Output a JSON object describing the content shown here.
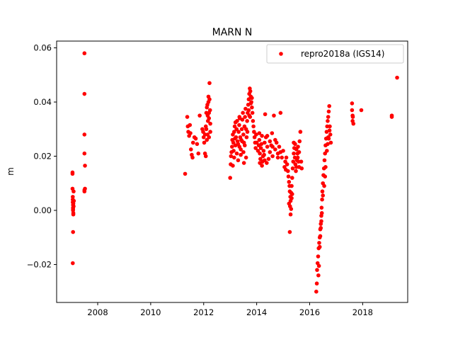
{
  "chart_data": {
    "type": "scatter",
    "title": "MARN N",
    "xlabel": "",
    "ylabel": "m",
    "xlim": [
      2006.45,
      2019.7
    ],
    "ylim": [
      -0.034,
      0.0625
    ],
    "xticks": [
      2008,
      2010,
      2012,
      2014,
      2016,
      2018
    ],
    "yticks": [
      -0.02,
      0.0,
      0.02,
      0.04,
      0.06
    ],
    "ytick_labels": [
      "−0.02",
      "0.00",
      "0.02",
      "0.04",
      "0.06"
    ],
    "grid": false,
    "legend_position": "top-right",
    "series": [
      {
        "name": "repro2018a (IGS14)",
        "color": "#ff0000",
        "marker": "circle",
        "points": [
          [
            2007.05,
            0.014
          ],
          [
            2007.05,
            0.0135
          ],
          [
            2007.05,
            0.008
          ],
          [
            2007.06,
            0.005
          ],
          [
            2007.06,
            0.004
          ],
          [
            2007.06,
            0.003
          ],
          [
            2007.07,
            0.002
          ],
          [
            2007.07,
            0.001
          ],
          [
            2007.07,
            0.0
          ],
          [
            2007.08,
            -0.001
          ],
          [
            2007.08,
            -0.0015
          ],
          [
            2007.09,
            0.0015
          ],
          [
            2007.09,
            0.007
          ],
          [
            2007.07,
            -0.008
          ],
          [
            2007.06,
            -0.0195
          ],
          [
            2007.1,
            0.0035
          ],
          [
            2007.08,
            0.0025
          ],
          [
            2007.07,
            0.0005
          ],
          [
            2007.5,
            0.058
          ],
          [
            2007.5,
            0.043
          ],
          [
            2007.5,
            0.028
          ],
          [
            2007.5,
            0.021
          ],
          [
            2007.52,
            0.0165
          ],
          [
            2007.5,
            0.0075
          ],
          [
            2007.5,
            0.007
          ],
          [
            2007.52,
            0.008
          ],
          [
            2011.3,
            0.0135
          ],
          [
            2011.38,
            0.0345
          ],
          [
            2011.4,
            0.031
          ],
          [
            2011.42,
            0.029
          ],
          [
            2011.45,
            0.0275
          ],
          [
            2011.48,
            0.0315
          ],
          [
            2011.5,
            0.0285
          ],
          [
            2011.52,
            0.0225
          ],
          [
            2011.55,
            0.0205
          ],
          [
            2011.58,
            0.0195
          ],
          [
            2011.6,
            0.025
          ],
          [
            2011.65,
            0.027
          ],
          [
            2011.7,
            0.0265
          ],
          [
            2011.75,
            0.0245
          ],
          [
            2011.8,
            0.021
          ],
          [
            2011.85,
            0.035
          ],
          [
            2011.95,
            0.03
          ],
          [
            2011.98,
            0.029
          ],
          [
            2012.0,
            0.027
          ],
          [
            2012.02,
            0.025
          ],
          [
            2012.05,
            0.028
          ],
          [
            2012.08,
            0.031
          ],
          [
            2012.05,
            0.021
          ],
          [
            2012.08,
            0.02
          ],
          [
            2012.1,
            0.036
          ],
          [
            2012.12,
            0.038
          ],
          [
            2012.14,
            0.039
          ],
          [
            2012.15,
            0.035
          ],
          [
            2012.16,
            0.033
          ],
          [
            2012.18,
            0.04
          ],
          [
            2012.18,
            0.042
          ],
          [
            2012.2,
            0.036
          ],
          [
            2012.2,
            0.034
          ],
          [
            2012.22,
            0.041
          ],
          [
            2012.22,
            0.047
          ],
          [
            2012.24,
            0.037
          ],
          [
            2012.25,
            0.032
          ],
          [
            2012.25,
            0.029
          ],
          [
            2012.12,
            0.026
          ],
          [
            2012.15,
            0.028
          ],
          [
            2012.1,
            0.03
          ],
          [
            2012.2,
            0.027
          ],
          [
            2013.0,
            0.012
          ],
          [
            2013.02,
            0.017
          ],
          [
            2013.03,
            0.02
          ],
          [
            2013.05,
            0.0215
          ],
          [
            2013.07,
            0.0235
          ],
          [
            2013.08,
            0.026
          ],
          [
            2013.1,
            0.028
          ],
          [
            2013.12,
            0.025
          ],
          [
            2013.13,
            0.022
          ],
          [
            2013.15,
            0.029
          ],
          [
            2013.17,
            0.031
          ],
          [
            2013.18,
            0.0265
          ],
          [
            2013.2,
            0.024
          ],
          [
            2013.22,
            0.027
          ],
          [
            2013.24,
            0.03
          ],
          [
            2013.26,
            0.033
          ],
          [
            2013.28,
            0.0255
          ],
          [
            2013.3,
            0.0245
          ],
          [
            2013.32,
            0.029
          ],
          [
            2013.34,
            0.0315
          ],
          [
            2013.36,
            0.034
          ],
          [
            2013.38,
            0.027
          ],
          [
            2013.4,
            0.0225
          ],
          [
            2013.42,
            0.026
          ],
          [
            2013.44,
            0.03
          ],
          [
            2013.46,
            0.0335
          ],
          [
            2013.48,
            0.036
          ],
          [
            2013.5,
            0.028
          ],
          [
            2013.52,
            0.025
          ],
          [
            2013.54,
            0.031
          ],
          [
            2013.56,
            0.0345
          ],
          [
            2013.58,
            0.0375
          ],
          [
            2013.6,
            0.03
          ],
          [
            2013.62,
            0.027
          ],
          [
            2013.64,
            0.033
          ],
          [
            2013.66,
            0.036
          ],
          [
            2013.68,
            0.039
          ],
          [
            2013.7,
            0.041
          ],
          [
            2013.72,
            0.043
          ],
          [
            2013.74,
            0.045
          ],
          [
            2013.76,
            0.044
          ],
          [
            2013.78,
            0.042
          ],
          [
            2013.8,
            0.04
          ],
          [
            2013.82,
            0.038
          ],
          [
            2013.84,
            0.036
          ],
          [
            2013.86,
            0.033
          ],
          [
            2013.88,
            0.031
          ],
          [
            2013.9,
            0.029
          ],
          [
            2013.92,
            0.027
          ],
          [
            2013.94,
            0.025
          ],
          [
            2013.96,
            0.023
          ],
          [
            2013.98,
            0.028
          ],
          [
            2014.0,
            0.025
          ],
          [
            2013.15,
            0.0195
          ],
          [
            2013.25,
            0.021
          ],
          [
            2013.35,
            0.0235
          ],
          [
            2013.45,
            0.0255
          ],
          [
            2013.55,
            0.024
          ],
          [
            2013.65,
            0.029
          ],
          [
            2013.75,
            0.0345
          ],
          [
            2013.7,
            0.037
          ],
          [
            2013.72,
            0.035
          ],
          [
            2013.5,
            0.0215
          ],
          [
            2013.6,
            0.0195
          ],
          [
            2013.4,
            0.0205
          ],
          [
            2013.3,
            0.0185
          ],
          [
            2013.52,
            0.0175
          ],
          [
            2013.1,
            0.0165
          ],
          [
            2013.2,
            0.0325
          ],
          [
            2013.35,
            0.0345
          ],
          [
            2013.78,
            0.0395
          ],
          [
            2013.82,
            0.0415
          ],
          [
            2014.05,
            0.022
          ],
          [
            2014.08,
            0.024
          ],
          [
            2014.1,
            0.026
          ],
          [
            2014.12,
            0.021
          ],
          [
            2014.14,
            0.019
          ],
          [
            2014.16,
            0.023
          ],
          [
            2014.18,
            0.0245
          ],
          [
            2014.2,
            0.0275
          ],
          [
            2014.22,
            0.018
          ],
          [
            2014.24,
            0.02
          ],
          [
            2014.26,
            0.022
          ],
          [
            2014.28,
            0.0205
          ],
          [
            2014.3,
            0.025
          ],
          [
            2014.32,
            0.0355
          ],
          [
            2014.35,
            0.027
          ],
          [
            2014.4,
            0.0235
          ],
          [
            2014.45,
            0.019
          ],
          [
            2014.5,
            0.0215
          ],
          [
            2014.55,
            0.024
          ],
          [
            2014.6,
            0.02
          ],
          [
            2014.65,
            0.035
          ],
          [
            2014.7,
            0.0225
          ],
          [
            2014.75,
            0.025
          ],
          [
            2014.8,
            0.021
          ],
          [
            2014.85,
            0.0235
          ],
          [
            2014.9,
            0.036
          ],
          [
            2014.95,
            0.0195
          ],
          [
            2015.0,
            0.022
          ],
          [
            2014.12,
            0.0175
          ],
          [
            2014.2,
            0.0165
          ],
          [
            2014.3,
            0.0185
          ],
          [
            2014.4,
            0.0275
          ],
          [
            2014.5,
            0.0255
          ],
          [
            2014.6,
            0.0235
          ],
          [
            2014.7,
            0.026
          ],
          [
            2014.8,
            0.0195
          ],
          [
            2014.9,
            0.0215
          ],
          [
            2014.58,
            0.0285
          ],
          [
            2014.38,
            0.0175
          ],
          [
            2014.1,
            0.0285
          ],
          [
            2015.05,
            0.016
          ],
          [
            2015.08,
            0.018
          ],
          [
            2015.1,
            0.015
          ],
          [
            2015.12,
            0.0195
          ],
          [
            2015.15,
            0.017
          ],
          [
            2015.18,
            0.0145
          ],
          [
            2015.2,
            0.0125
          ],
          [
            2015.22,
            0.0105
          ],
          [
            2015.24,
            0.009
          ],
          [
            2015.25,
            0.007
          ],
          [
            2015.27,
            0.005
          ],
          [
            2015.28,
            0.0035
          ],
          [
            2015.3,
            0.0065
          ],
          [
            2015.32,
            0.009
          ],
          [
            2015.34,
            0.012
          ],
          [
            2015.36,
            0.0155
          ],
          [
            2015.38,
            0.018
          ],
          [
            2015.4,
            0.021
          ],
          [
            2015.42,
            0.023
          ],
          [
            2015.44,
            0.0195
          ],
          [
            2015.46,
            0.017
          ],
          [
            2015.48,
            0.0145
          ],
          [
            2015.5,
            0.016
          ],
          [
            2015.52,
            0.0185
          ],
          [
            2015.54,
            0.021
          ],
          [
            2015.56,
            0.0235
          ],
          [
            2015.58,
            0.018
          ],
          [
            2015.6,
            0.016
          ],
          [
            2015.62,
            0.0255
          ],
          [
            2015.65,
            0.029
          ],
          [
            2015.68,
            0.018
          ],
          [
            2015.7,
            0.0155
          ],
          [
            2015.25,
            -0.008
          ],
          [
            2015.28,
            -0.0015
          ],
          [
            2015.3,
            0.0005
          ],
          [
            2015.22,
            0.0025
          ],
          [
            2015.26,
            0.0015
          ],
          [
            2015.32,
            0.0045
          ],
          [
            2015.34,
            0.006
          ],
          [
            2015.4,
            0.025
          ],
          [
            2015.45,
            0.0245
          ],
          [
            2015.5,
            0.0225
          ],
          [
            2015.55,
            0.0195
          ],
          [
            2015.6,
            0.0215
          ],
          [
            2016.25,
            -0.03
          ],
          [
            2016.27,
            -0.027
          ],
          [
            2016.28,
            -0.022
          ],
          [
            2016.3,
            -0.0195
          ],
          [
            2016.32,
            -0.017
          ],
          [
            2016.34,
            -0.014
          ],
          [
            2016.36,
            -0.012
          ],
          [
            2016.38,
            -0.01
          ],
          [
            2016.4,
            -0.007
          ],
          [
            2016.42,
            -0.005
          ],
          [
            2016.44,
            -0.002
          ],
          [
            2016.45,
            0.001
          ],
          [
            2016.47,
            0.004
          ],
          [
            2016.48,
            0.007
          ],
          [
            2016.5,
            0.01
          ],
          [
            2016.52,
            0.013
          ],
          [
            2016.54,
            0.0155
          ],
          [
            2016.56,
            0.0185
          ],
          [
            2016.58,
            0.021
          ],
          [
            2016.6,
            0.024
          ],
          [
            2016.62,
            0.0265
          ],
          [
            2016.64,
            0.029
          ],
          [
            2016.66,
            0.031
          ],
          [
            2016.68,
            0.033
          ],
          [
            2016.7,
            0.0345
          ],
          [
            2016.72,
            0.0365
          ],
          [
            2016.74,
            0.0385
          ],
          [
            2016.76,
            0.031
          ],
          [
            2016.78,
            0.028
          ],
          [
            2016.8,
            0.025
          ],
          [
            2016.35,
            -0.0205
          ],
          [
            2016.33,
            -0.024
          ],
          [
            2016.38,
            -0.0135
          ],
          [
            2016.4,
            -0.0095
          ],
          [
            2016.42,
            -0.0065
          ],
          [
            2016.44,
            -0.004
          ],
          [
            2016.55,
            0.009
          ],
          [
            2016.6,
            0.016
          ],
          [
            2016.65,
            0.022
          ],
          [
            2016.7,
            0.027
          ],
          [
            2016.75,
            0.0295
          ],
          [
            2016.58,
            0.0125
          ],
          [
            2016.5,
            0.0055
          ],
          [
            2016.46,
            -0.001
          ],
          [
            2016.68,
            0.0245
          ],
          [
            2016.72,
            0.0265
          ],
          [
            2017.6,
            0.0395
          ],
          [
            2017.6,
            0.037
          ],
          [
            2017.62,
            0.035
          ],
          [
            2017.62,
            0.033
          ],
          [
            2017.65,
            0.032
          ],
          [
            2017.63,
            0.0345
          ],
          [
            2017.95,
            0.037
          ],
          [
            2019.1,
            0.035
          ],
          [
            2019.1,
            0.0345
          ],
          [
            2019.3,
            0.049
          ]
        ]
      }
    ]
  }
}
